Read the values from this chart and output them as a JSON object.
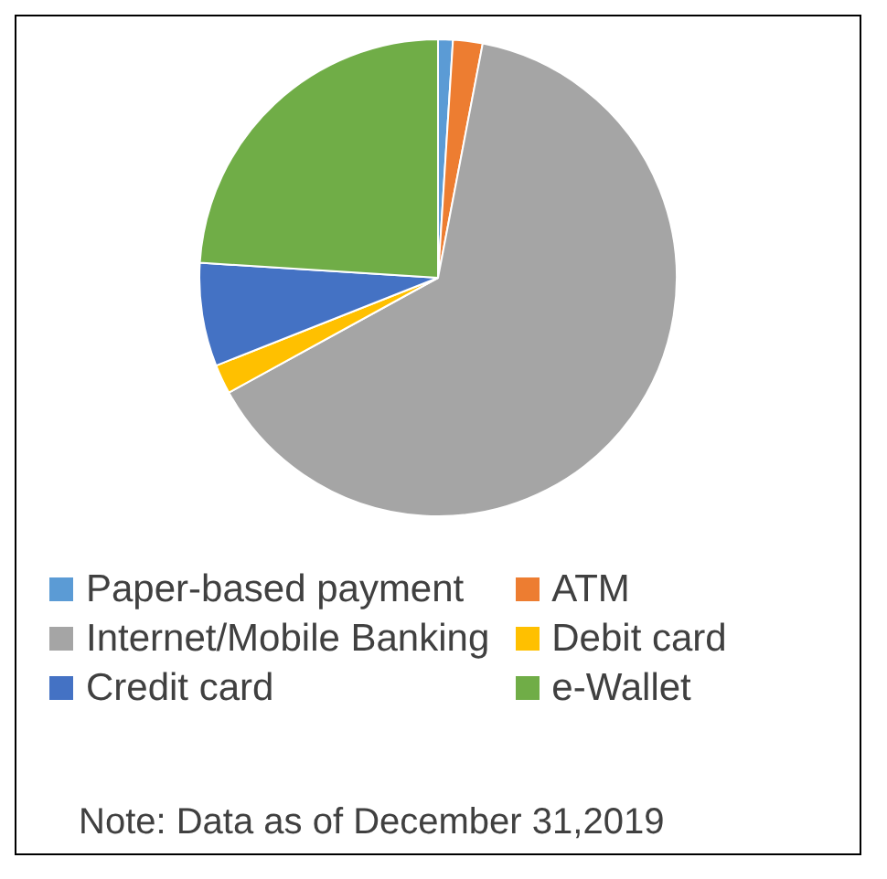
{
  "chart_data": {
    "type": "pie",
    "categories": [
      "Paper-based payment",
      "ATM",
      "Internet/Mobile Banking",
      "Debit card",
      "Credit card",
      "e-Wallet"
    ],
    "values": [
      1,
      2,
      64,
      2,
      7,
      24
    ],
    "colors": [
      "#5b9bd5",
      "#ed7d31",
      "#a5a5a5",
      "#ffc000",
      "#4472c4",
      "#70ad47"
    ],
    "legend": "bottom",
    "annotations": [
      "Note: Data as of December 31,2019"
    ]
  }
}
